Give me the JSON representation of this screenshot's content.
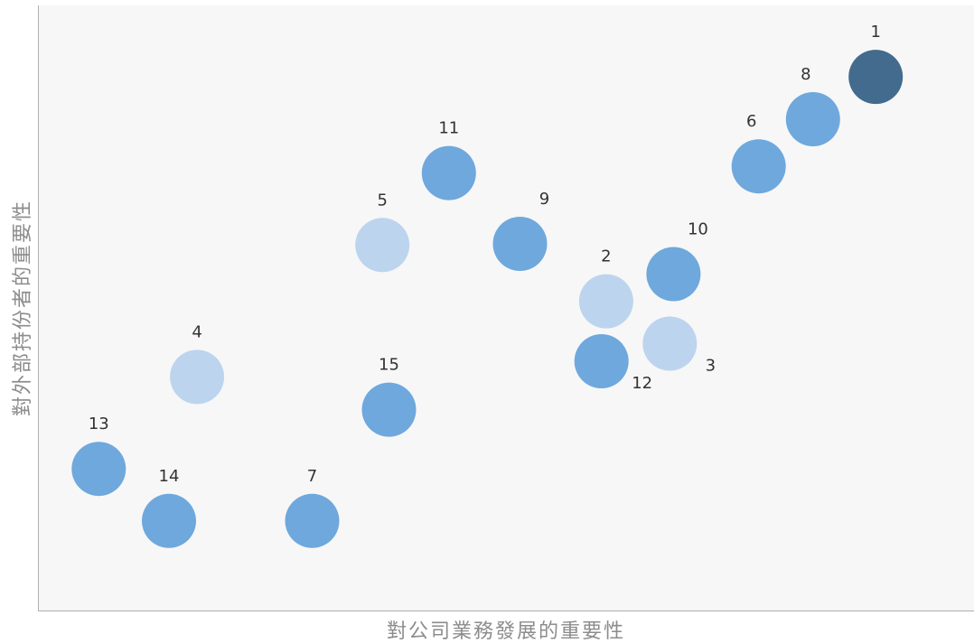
{
  "chart_data": {
    "type": "scatter",
    "title": "",
    "xlabel": "對公司業務發展的重要性",
    "ylabel": "對外部持份者的重要性",
    "xlim": [
      0,
      100
    ],
    "ylim": [
      0,
      100
    ],
    "grid": false,
    "legend": "none",
    "colors": {
      "plot_background": "#f7f7f8",
      "axis_line": "#b0b0b0",
      "dark": "#436b8e",
      "medium": "#6fa8dc",
      "light": "#bdd4ee"
    },
    "points": [
      {
        "label": "1",
        "x": 89.5,
        "y": 88.2,
        "level": "dark",
        "label_pos": "top"
      },
      {
        "label": "2",
        "x": 60.7,
        "y": 51.1,
        "level": "light",
        "label_pos": "top"
      },
      {
        "label": "3",
        "x": 67.5,
        "y": 44.1,
        "level": "light",
        "label_pos": "bottom-right"
      },
      {
        "label": "4",
        "x": 17.0,
        "y": 38.6,
        "level": "light",
        "label_pos": "top"
      },
      {
        "label": "5",
        "x": 36.8,
        "y": 60.4,
        "level": "light",
        "label_pos": "top"
      },
      {
        "label": "6",
        "x": 77.0,
        "y": 73.4,
        "level": "medium",
        "label_pos": "top-left"
      },
      {
        "label": "7",
        "x": 29.3,
        "y": 14.8,
        "level": "medium",
        "label_pos": "top"
      },
      {
        "label": "8",
        "x": 82.8,
        "y": 81.2,
        "level": "medium",
        "label_pos": "top-left"
      },
      {
        "label": "9",
        "x": 51.5,
        "y": 60.6,
        "level": "medium",
        "label_pos": "top-right"
      },
      {
        "label": "10",
        "x": 67.9,
        "y": 55.6,
        "level": "medium",
        "label_pos": "top-right"
      },
      {
        "label": "11",
        "x": 43.9,
        "y": 72.3,
        "level": "medium",
        "label_pos": "top"
      },
      {
        "label": "12",
        "x": 60.2,
        "y": 41.2,
        "level": "medium",
        "label_pos": "bottom-right"
      },
      {
        "label": "13",
        "x": 6.5,
        "y": 23.4,
        "level": "medium",
        "label_pos": "top"
      },
      {
        "label": "14",
        "x": 14.0,
        "y": 14.8,
        "level": "medium",
        "label_pos": "top"
      },
      {
        "label": "15",
        "x": 37.5,
        "y": 33.2,
        "level": "medium",
        "label_pos": "top"
      }
    ]
  }
}
